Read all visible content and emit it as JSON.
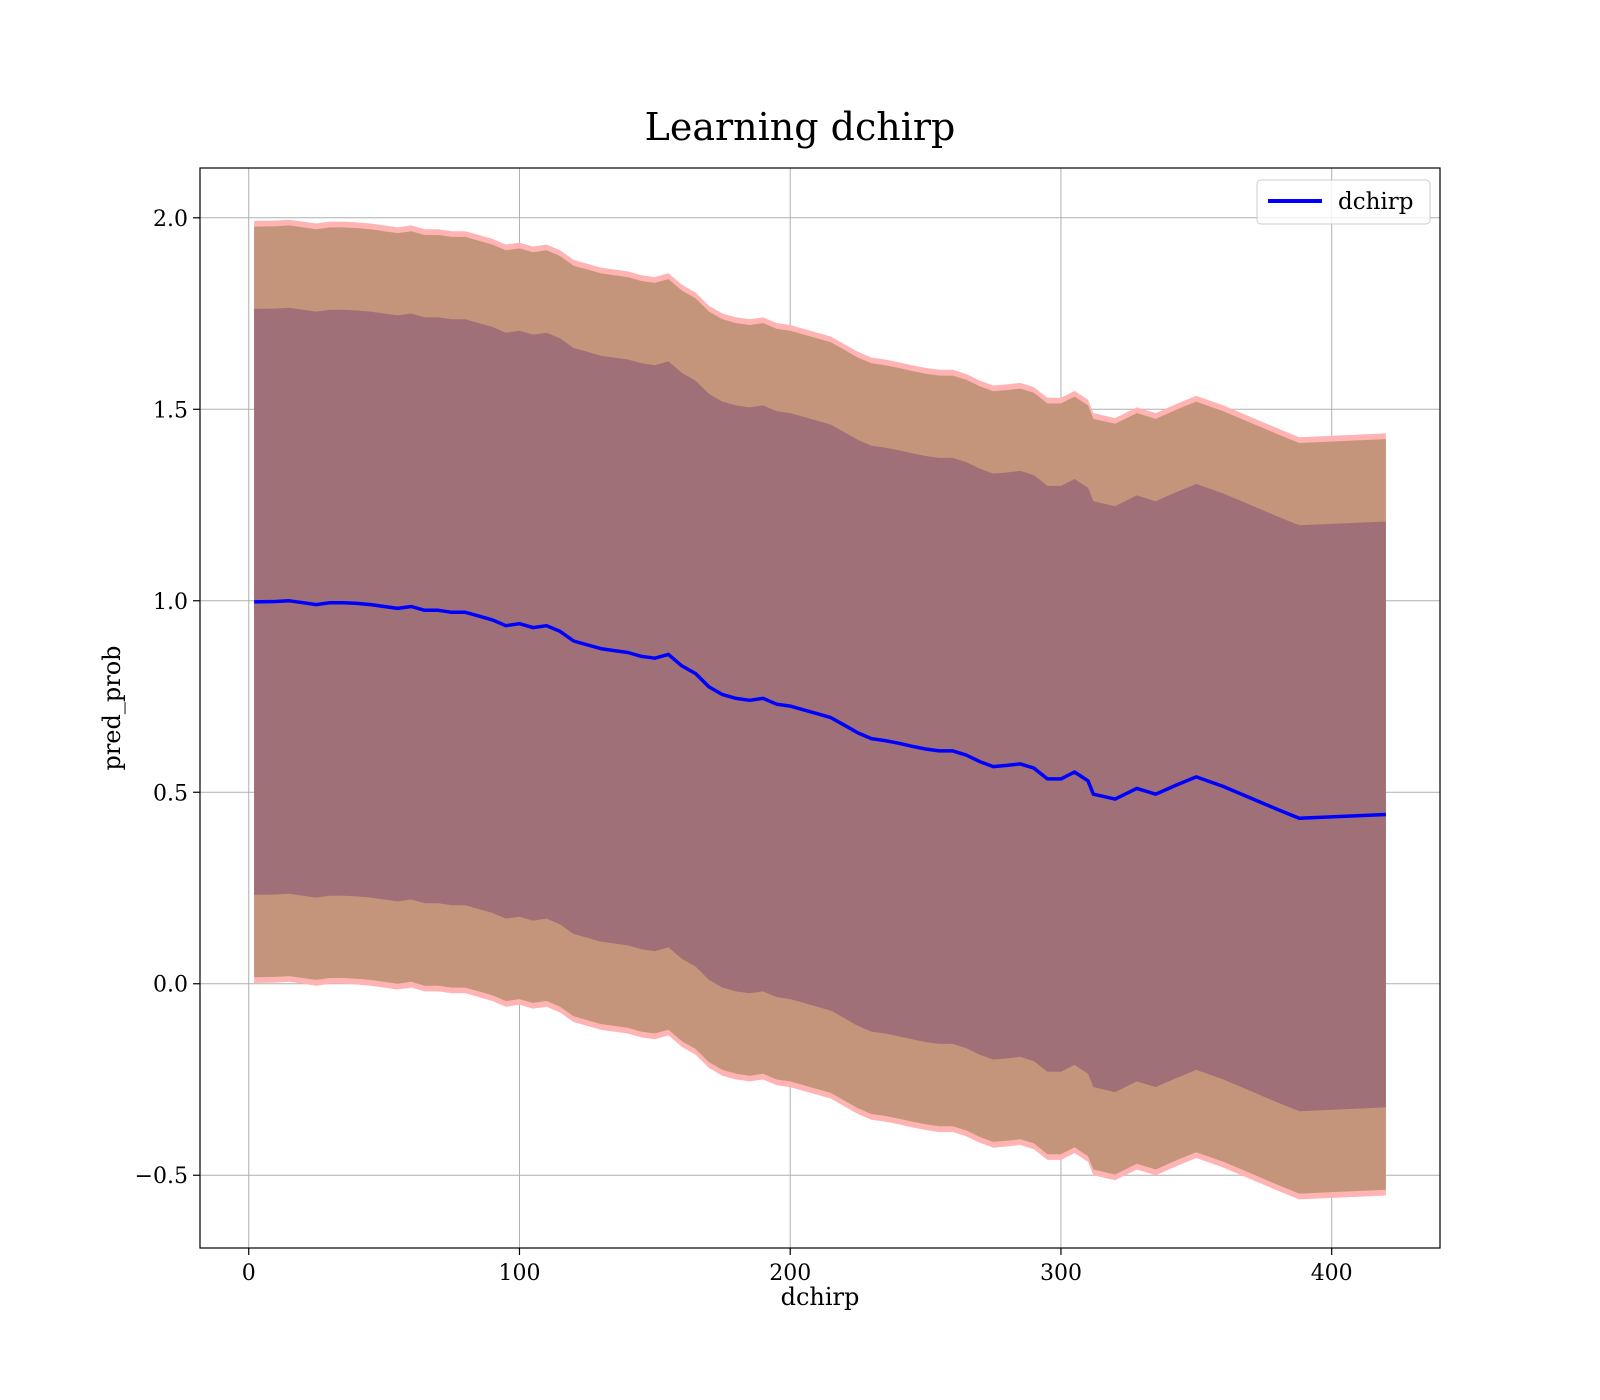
{
  "chart_data": {
    "type": "line",
    "title": "Learning dchirp",
    "xlabel": "dchirp",
    "ylabel": "pred_prob",
    "xlim": [
      -18,
      440
    ],
    "ylim": [
      -0.69,
      2.13
    ],
    "xticks": [
      0,
      100,
      200,
      300,
      400
    ],
    "yticks": [
      -0.5,
      0.0,
      0.5,
      1.0,
      1.5,
      2.0
    ],
    "ytick_labels": [
      "−0.5",
      "0.0",
      "0.5",
      "1.0",
      "1.5",
      "2.0"
    ],
    "grid": true,
    "legend": {
      "placement": "top-right",
      "entries": [
        "dchirp"
      ]
    },
    "series": [
      {
        "name": "dchirp",
        "color": "#0000ff",
        "x": [
          2,
          10,
          15,
          20,
          25,
          30,
          35,
          40,
          45,
          50,
          55,
          60,
          65,
          70,
          75,
          80,
          85,
          90,
          95,
          100,
          105,
          110,
          115,
          120,
          125,
          130,
          135,
          140,
          145,
          150,
          155,
          160,
          165,
          170,
          175,
          180,
          185,
          190,
          195,
          200,
          205,
          210,
          215,
          220,
          225,
          230,
          235,
          240,
          245,
          250,
          255,
          260,
          265,
          270,
          275,
          280,
          285,
          290,
          295,
          300,
          305,
          310,
          312,
          320,
          328,
          335,
          343,
          350,
          360,
          370,
          380,
          388,
          420
        ],
        "y": [
          0.997,
          0.998,
          1.0,
          0.995,
          0.99,
          0.995,
          0.995,
          0.993,
          0.99,
          0.985,
          0.98,
          0.985,
          0.975,
          0.975,
          0.97,
          0.97,
          0.96,
          0.95,
          0.935,
          0.94,
          0.93,
          0.935,
          0.92,
          0.895,
          0.885,
          0.875,
          0.87,
          0.865,
          0.855,
          0.85,
          0.86,
          0.83,
          0.81,
          0.775,
          0.755,
          0.745,
          0.74,
          0.745,
          0.73,
          0.725,
          0.715,
          0.705,
          0.695,
          0.675,
          0.655,
          0.64,
          0.635,
          0.628,
          0.62,
          0.613,
          0.608,
          0.608,
          0.597,
          0.58,
          0.567,
          0.57,
          0.574,
          0.563,
          0.535,
          0.535,
          0.553,
          0.53,
          0.495,
          0.482,
          0.51,
          0.495,
          0.52,
          0.54,
          0.515,
          0.485,
          0.455,
          0.432,
          0.442
        ]
      }
    ],
    "bands": [
      {
        "name": "outer",
        "fill": "#ffb3b3",
        "half_width": 0.995
      },
      {
        "name": "middle",
        "fill": "#c4957a",
        "half_width": 0.98
      },
      {
        "name": "inner",
        "fill": "#a07078",
        "half_width": 0.765
      }
    ]
  }
}
